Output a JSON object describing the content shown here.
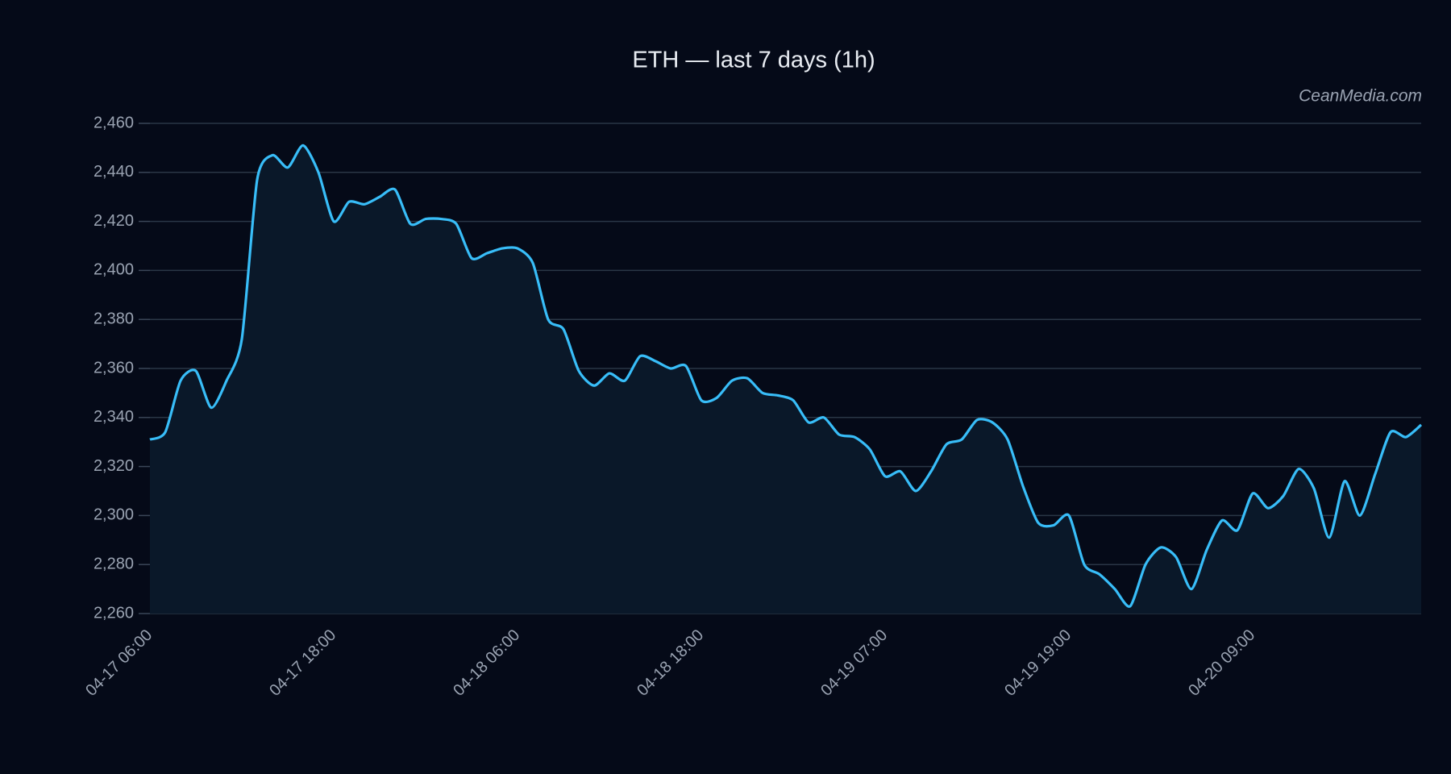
{
  "chart_data": {
    "type": "line",
    "title": "ETH — last 7 days (1h)",
    "watermark": "CeanMedia.com",
    "categories": [
      "04-17 06:00",
      null,
      null,
      null,
      null,
      null,
      null,
      null,
      null,
      null,
      null,
      null,
      "04-17 18:00",
      null,
      null,
      null,
      null,
      null,
      null,
      null,
      null,
      null,
      null,
      null,
      "04-18 06:00",
      null,
      null,
      null,
      null,
      null,
      null,
      null,
      null,
      null,
      null,
      null,
      "04-18 18:00",
      null,
      null,
      null,
      null,
      null,
      null,
      null,
      null,
      null,
      null,
      null,
      "04-19 07:00",
      null,
      null,
      null,
      null,
      null,
      null,
      null,
      null,
      null,
      null,
      null,
      "04-19 19:00",
      null,
      null,
      null,
      null,
      null,
      null,
      null,
      null,
      null,
      null,
      null,
      "04-20 09:00",
      null,
      null,
      null,
      null,
      null,
      null,
      null,
      null,
      null,
      null,
      null
    ],
    "series": [
      {
        "name": "ETH",
        "color": "#38bdf8",
        "values": [
          2331,
          2334,
          2355,
          2359,
          2344,
          2355,
          2372,
          2437,
          2447,
          2442,
          2451,
          2440,
          2420,
          2428,
          2427,
          2430,
          2433,
          2419,
          2421,
          2421,
          2419,
          2405,
          2407,
          2409,
          2409,
          2403,
          2380,
          2376,
          2359,
          2353,
          2358,
          2355,
          2365,
          2363,
          2360,
          2361,
          2347,
          2348,
          2355,
          2356,
          2350,
          2349,
          2347,
          2338,
          2340,
          2333,
          2332,
          2327,
          2316,
          2318,
          2310,
          2318,
          2329,
          2331,
          2339,
          2338,
          2331,
          2312,
          2297,
          2296,
          2300,
          2280,
          2276,
          2270,
          2263,
          2280,
          2287,
          2283,
          2270,
          2286,
          2298,
          2294,
          2309,
          2303,
          2308,
          2319,
          2311,
          2291,
          2314,
          2300,
          2317,
          2334,
          2332,
          2337
        ]
      }
    ],
    "ylim": [
      2260,
      2460
    ],
    "yticks": [
      {
        "value": 2260,
        "label": "2,260"
      },
      {
        "value": 2280,
        "label": "2,280"
      },
      {
        "value": 2300,
        "label": "2,300"
      },
      {
        "value": 2320,
        "label": "2,320"
      },
      {
        "value": 2340,
        "label": "2,340"
      },
      {
        "value": 2360,
        "label": "2,360"
      },
      {
        "value": 2380,
        "label": "2,380"
      },
      {
        "value": 2400,
        "label": "2,400"
      },
      {
        "value": 2420,
        "label": "2,420"
      },
      {
        "value": 2440,
        "label": "2,440"
      },
      {
        "value": 2460,
        "label": "2,460"
      }
    ],
    "grid": true,
    "area_color": "#0a1829"
  }
}
